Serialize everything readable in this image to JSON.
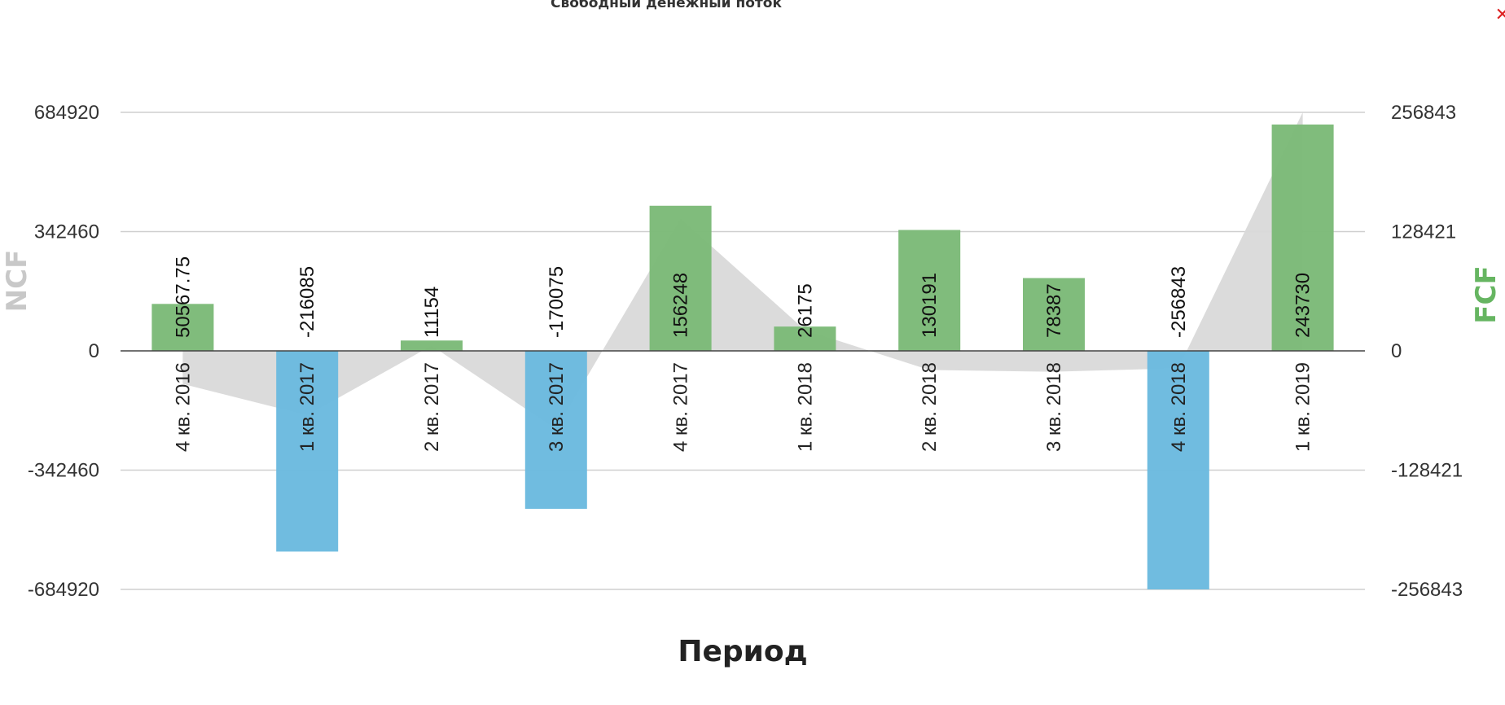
{
  "chart_data": {
    "type": "bar",
    "title": "Свободный денежный поток",
    "xlabel": "Период",
    "ylabel_left": "NCF",
    "ylabel_right": "FCF",
    "y_left_ticks": [
      "684920",
      "342460",
      "0",
      "-342460",
      "-684920"
    ],
    "y_right_ticks": [
      "256843",
      "128421",
      "0",
      "-128421",
      "-256843"
    ],
    "y_left_range": [
      -684920,
      684920
    ],
    "y_right_range": [
      -256843,
      256843
    ],
    "categories": [
      "4 кв. 2016",
      "1 кв. 2017",
      "2 кв. 2017",
      "3 кв. 2017",
      "4 кв. 2017",
      "1 кв. 2018",
      "2 кв. 2018",
      "3 кв. 2018",
      "4 кв. 2018",
      "1 кв. 2019"
    ],
    "series": [
      {
        "axis": "right",
        "kind": "bar",
        "values": [
          50567.75,
          -216085,
          11154,
          -170075,
          156248,
          26175,
          130191,
          78387,
          -256843,
          243730
        ],
        "labels": [
          "50567.75",
          "-216085",
          "11154",
          "-170075",
          "156248",
          "26175",
          "130191",
          "78387",
          "-256843",
          "243730"
        ]
      },
      {
        "axis": "left",
        "kind": "area",
        "values": [
          -95000,
          -185000,
          15000,
          -225000,
          380000,
          60000,
          -55000,
          -60000,
          -50000,
          685000
        ]
      }
    ],
    "grid": true,
    "colors": {
      "positive": "#7cba78",
      "negative": "#6bbadf",
      "area": "#d9d9d9",
      "left_title": "#c8c8c8",
      "right_title": "#66b561"
    }
  },
  "ui": {
    "close_icon": "close-icon"
  }
}
